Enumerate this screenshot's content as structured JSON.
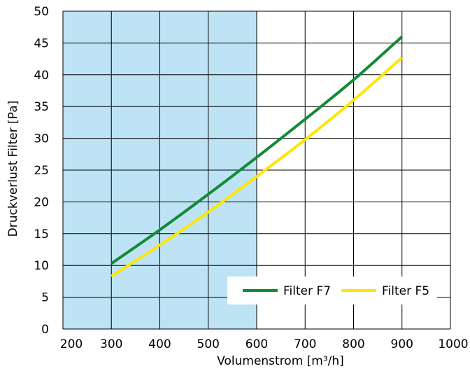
{
  "chart_data": {
    "type": "line",
    "title": "",
    "xlabel": "Volumenstrom [m³/h]",
    "ylabel": "Druckverlust Filter [Pa]",
    "xlim": [
      200,
      1000
    ],
    "ylim": [
      0,
      50
    ],
    "x_ticks": [
      "200",
      "300",
      "400",
      "500",
      "600",
      "700",
      "800",
      "900",
      "1000"
    ],
    "y_ticks": [
      "0",
      "5",
      "10",
      "15",
      "20",
      "25",
      "30",
      "35",
      "40",
      "45",
      "50"
    ],
    "grid": true,
    "highlight_region": {
      "x_from": 200,
      "x_to": 600,
      "color": "#bde3f4"
    },
    "legend": {
      "placement": "bottom-right"
    },
    "series": [
      {
        "name": "Filter F7",
        "color": "#138a36",
        "x": [
          300,
          400,
          500,
          600,
          700,
          800,
          900
        ],
        "y": [
          10.3,
          15.6,
          21.2,
          27.0,
          33.0,
          39.2,
          46.0
        ]
      },
      {
        "name": "Filter F5",
        "color": "#ffe600",
        "x": [
          300,
          400,
          500,
          600,
          700,
          800,
          900
        ],
        "y": [
          8.3,
          13.2,
          18.4,
          24.0,
          29.8,
          36.0,
          42.7
        ]
      }
    ]
  }
}
